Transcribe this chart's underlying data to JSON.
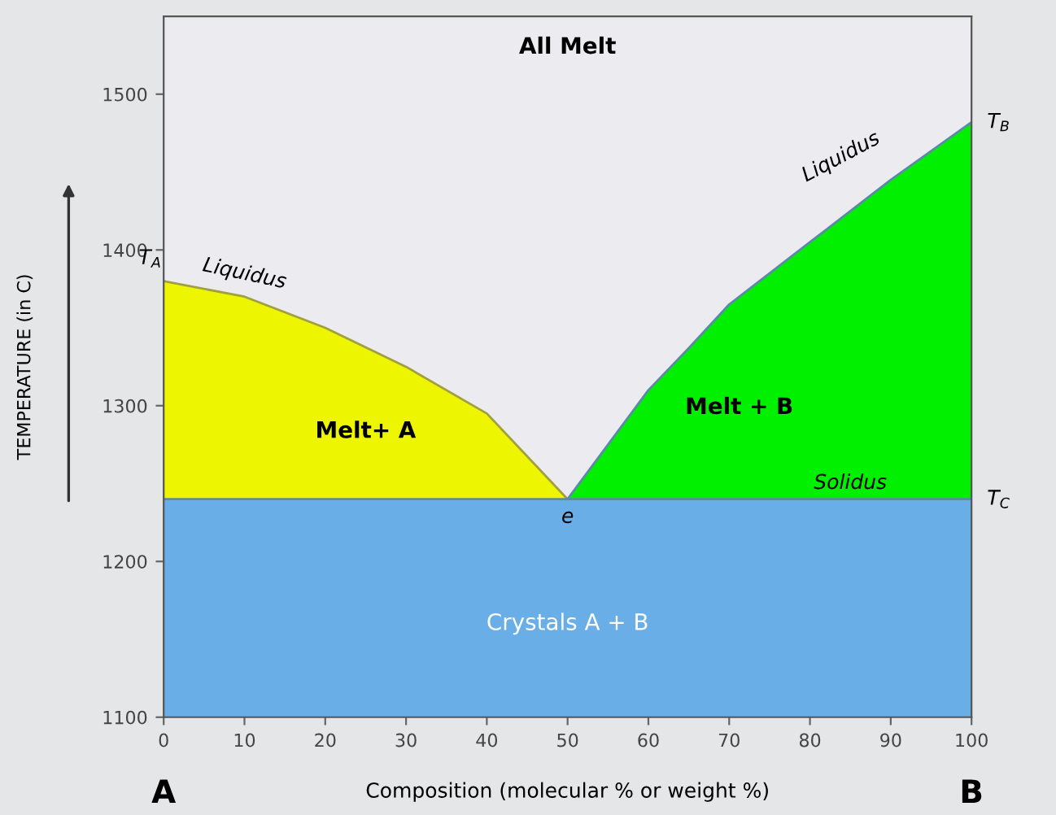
{
  "chart_data": {
    "type": "area",
    "xlabel": "Composition (molecular % or weight %)",
    "ylabel": "TEMPERATURE (in C)",
    "xlim": [
      0,
      100
    ],
    "ylim": [
      1100,
      1550
    ],
    "xticks": [
      0,
      10,
      20,
      30,
      40,
      50,
      60,
      70,
      80,
      90,
      100
    ],
    "yticks": [
      1100,
      1200,
      1300,
      1400,
      1500
    ],
    "grid": false,
    "legend": false,
    "series": [
      {
        "name": "Melt+ A",
        "color": "#eef500",
        "x": [
          0,
          10,
          20,
          30,
          40,
          50
        ],
        "values": [
          1380,
          1370,
          1350,
          1325,
          1295,
          1240
        ]
      },
      {
        "name": "Melt + B",
        "color": "#00f000",
        "x": [
          50,
          55,
          60,
          65,
          70,
          80,
          90,
          100
        ],
        "values": [
          1240,
          1275,
          1310,
          1337,
          1365,
          1405,
          1445,
          1482
        ]
      },
      {
        "name": "Crystals A + B",
        "color": "#6aaee8",
        "x": [
          0,
          100
        ],
        "values": [
          1240,
          1240
        ]
      }
    ],
    "annotations": [
      "All Melt",
      {
        "text": "Liquidus",
        "x": 10,
        "y": 1370
      },
      {
        "text": "Liquidus",
        "x": 90,
        "y": 1445
      },
      {
        "text": "Solidus",
        "x": 85,
        "y": 1240
      },
      {
        "text": "T$_{A}$",
        "x": 0,
        "y": 1380
      },
      {
        "text": "T$_{B}$",
        "x": 100,
        "y": 1482
      },
      {
        "text": "T$_{C}$",
        "x": 100,
        "y": 1240
      },
      {
        "text": "e",
        "x": 50,
        "y": 1240
      },
      {
        "text": "A",
        "x": 0,
        "y": 1100
      },
      {
        "text": "B",
        "x": 100,
        "y": 1100
      }
    ]
  }
}
